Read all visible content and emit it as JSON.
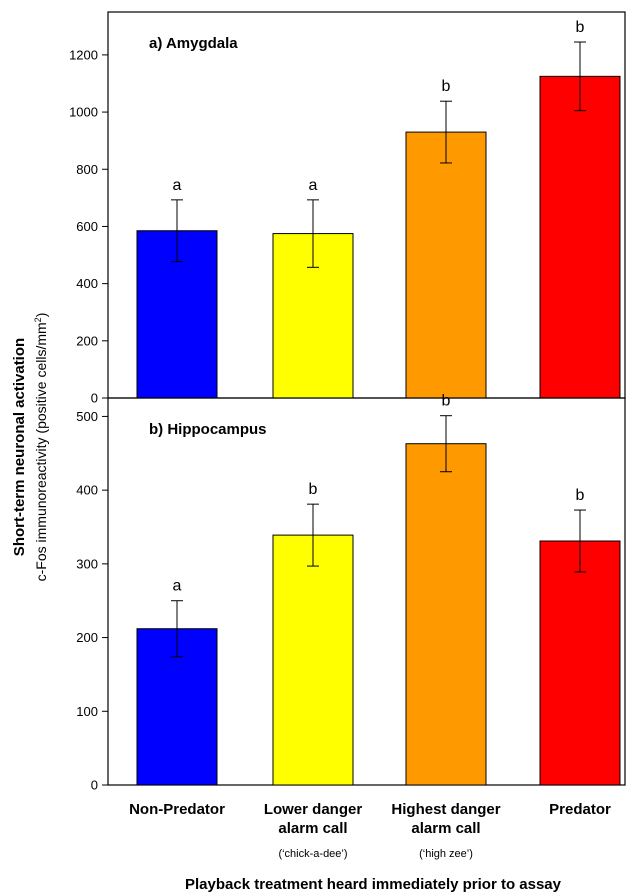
{
  "chart_data": {
    "type": "bar",
    "ylabel_line1": "Short-term neuronal activation",
    "ylabel_line2_prefix": "c-Fos immunoreactivity  (positive cells/mm",
    "ylabel_line2_sup": "2",
    "ylabel_line2_suffix": ")",
    "xlabel": "Playback treatment heard immediately  prior to assay",
    "categories": [
      {
        "line1": "Non-Predator",
        "line2": "",
        "sub": ""
      },
      {
        "line1": "Lower danger",
        "line2": "alarm call",
        "sub": "(‘chick-a-dee’)"
      },
      {
        "line1": "Highest danger",
        "line2": "alarm call",
        "sub": "(‘high zee’)"
      },
      {
        "line1": "Predator",
        "line2": "",
        "sub": ""
      }
    ],
    "colors": [
      "#0000ff",
      "#ffff00",
      "#ff9900",
      "#ff0000"
    ],
    "panels": [
      {
        "title": "a) Amygdala",
        "ylim": [
          0,
          1350
        ],
        "yticks": [
          0,
          200,
          400,
          600,
          800,
          1000,
          1200
        ],
        "values": [
          585,
          575,
          930,
          1125
        ],
        "errors": [
          108,
          118,
          108,
          120
        ],
        "letters": [
          "a",
          "a",
          "b",
          "b"
        ]
      },
      {
        "title": "b) Hippocampus",
        "ylim": [
          0,
          525
        ],
        "yticks": [
          0,
          100,
          200,
          300,
          400,
          500
        ],
        "values": [
          212,
          339,
          463,
          331
        ],
        "errors": [
          38,
          42,
          38,
          42
        ],
        "letters": [
          "a",
          "b",
          "b",
          "b"
        ]
      }
    ]
  }
}
